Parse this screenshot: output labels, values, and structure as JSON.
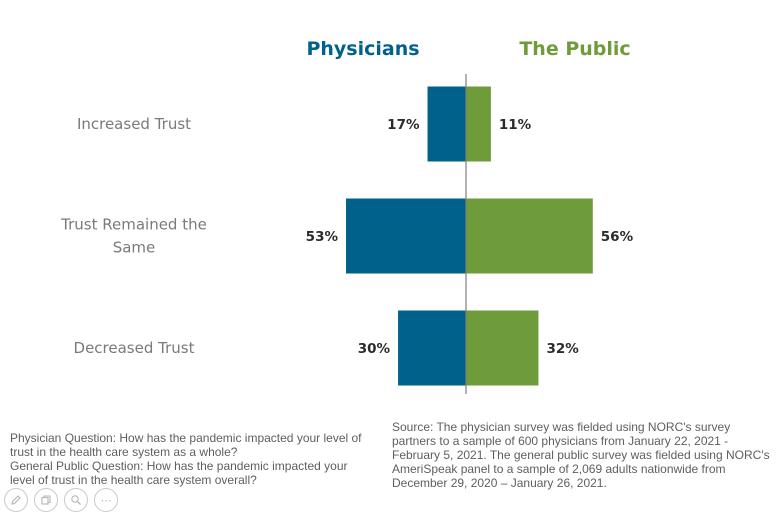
{
  "chart_data": {
    "type": "bar",
    "orientation": "diverging-horizontal",
    "title": "",
    "categories": [
      "Increased Trust",
      "Trust Remained the Same",
      "Decreased Trust"
    ],
    "category_lines": [
      [
        "Increased Trust"
      ],
      [
        "Trust Remained the",
        "Same"
      ],
      [
        "Decreased Trust"
      ]
    ],
    "series": [
      {
        "name": "Physicians",
        "values": [
          17,
          53,
          30
        ],
        "labels": [
          "17%",
          "53%",
          "30%"
        ],
        "color": "#00628b",
        "side": "left"
      },
      {
        "name": "The Public",
        "values": [
          11,
          56,
          32
        ],
        "labels": [
          "11%",
          "56%",
          "32%"
        ],
        "color": "#6f9c3a",
        "side": "right"
      }
    ],
    "xlim": [
      0,
      60
    ],
    "grid": false,
    "legend": "top",
    "axis_color": "#7f7f7f"
  },
  "notes": {
    "questions": "Physician Question: How has the pandemic impacted your level of trust in the health care system as a whole?\nGeneral Public Question: How has the pandemic impacted your level of trust in the health care system overall?",
    "source": "Source: The physician survey was fielded using NORC's survey partners to a sample of 600 physicians from January 22, 2021 - February 5, 2021. The general public survey was fielded using NORC's AmeriSpeak panel to a sample of 2,069 adults nationwide from December 29, 2020 – January 26, 2021."
  },
  "toolbar": {
    "icons": [
      "pencil-icon",
      "copy-icon",
      "zoom-icon",
      "more-icon"
    ],
    "more_label": "⋯"
  }
}
